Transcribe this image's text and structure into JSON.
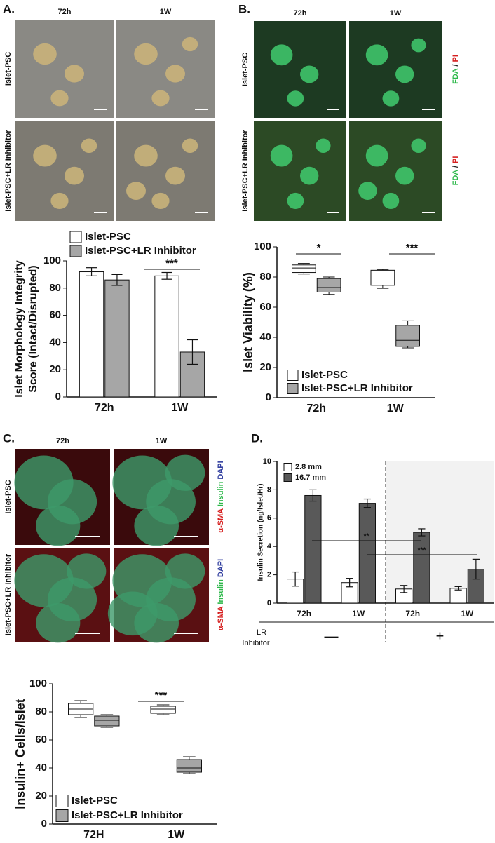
{
  "image_panels": [
    {
      "label": "A.",
      "column_labels": [
        "72h",
        "1W"
      ],
      "row_labels": [
        "Islet-PSC",
        "Islet-PSC+LR Inhibitor"
      ]
    },
    {
      "label": "B.",
      "column_labels": [
        "72h",
        "1W"
      ],
      "row_labels": [
        "Islet-PSC",
        "Islet-PSC+LR Inhibitor"
      ],
      "stain_labels": [
        [
          {
            "text": "FDA",
            "color": "#2db84a"
          },
          {
            "text": " / ",
            "color": "#222222"
          },
          {
            "text": "PI",
            "color": "#d62020"
          }
        ],
        [
          {
            "text": "FDA",
            "color": "#2db84a"
          },
          {
            "text": " / ",
            "color": "#222222"
          },
          {
            "text": "PI",
            "color": "#d62020"
          }
        ]
      ]
    },
    {
      "label": "C.",
      "column_labels": [
        "72h",
        "1W"
      ],
      "row_labels": [
        "Islet-PSC",
        "Islet-PSC+LR Inhibitor"
      ],
      "stain_labels": [
        [
          {
            "text": "α-SMA ",
            "color": "#d62020"
          },
          {
            "text": "Insulin ",
            "color": "#2db84a"
          },
          {
            "text": "DAPI",
            "color": "#3340a0"
          }
        ],
        [
          {
            "text": "α-SMA ",
            "color": "#d62020"
          },
          {
            "text": "Insulin ",
            "color": "#2db84a"
          },
          {
            "text": "DAPI",
            "color": "#3340a0"
          }
        ]
      ]
    },
    {
      "label": "D."
    }
  ],
  "chart_data": [
    {
      "type": "bar",
      "y_label": [
        "Islet Morphology Integrity",
        "Score (Intact/Disrupted)"
      ],
      "categories": [
        "72h",
        "1W"
      ],
      "series": [
        {
          "name": "Islet-PSC",
          "color": "#ffffff",
          "values": [
            92,
            89
          ],
          "errors": [
            3,
            2.5
          ]
        },
        {
          "name": "Islet-PSC+LR Inhibitor",
          "color": "#a6a6a6",
          "values": [
            86,
            33
          ],
          "errors": [
            4,
            9
          ]
        }
      ],
      "ylim": [
        0,
        100
      ],
      "yticks": [
        0,
        20,
        40,
        60,
        80,
        100
      ],
      "legend": "top-left",
      "annotations": [
        "***"
      ]
    },
    {
      "type": "box",
      "y_label": [
        "Islet Viability (%)"
      ],
      "categories": [
        "72h",
        "1W"
      ],
      "series": [
        {
          "name": "Islet-PSC",
          "color": "#ffffff",
          "min": [
            82,
            72.5
          ],
          "q1": [
            83,
            74.5
          ],
          "median": [
            86,
            84
          ],
          "q3": [
            88,
            84.5
          ],
          "max": [
            89,
            85
          ]
        },
        {
          "name": "Islet-PSC+LR Inhibitor",
          "color": "#a6a6a6",
          "min": [
            68.5,
            33
          ],
          "q1": [
            70,
            34
          ],
          "median": [
            73,
            38
          ],
          "q3": [
            79,
            48
          ],
          "max": [
            80,
            51
          ]
        }
      ],
      "ylim": [
        0,
        100
      ],
      "yticks": [
        0,
        20,
        40,
        60,
        80,
        100
      ],
      "legend": "bottom-left",
      "annotations": [
        "*",
        "***"
      ]
    },
    {
      "type": "box",
      "y_label": [
        "Insulin+ Cells/Islet"
      ],
      "categories": [
        "72H",
        "1W"
      ],
      "series": [
        {
          "name": "Islet-PSC",
          "color": "#ffffff",
          "min": [
            76,
            78
          ],
          "q1": [
            78,
            79
          ],
          "median": [
            82,
            82
          ],
          "q3": [
            86,
            84
          ],
          "max": [
            88,
            85
          ]
        },
        {
          "name": "Islet-PSC+LR Inhibitor",
          "color": "#a6a6a6",
          "min": [
            69,
            36
          ],
          "q1": [
            70,
            37
          ],
          "median": [
            74,
            40
          ],
          "q3": [
            77,
            46
          ],
          "max": [
            78,
            48
          ]
        }
      ],
      "ylim": [
        0,
        100
      ],
      "yticks": [
        0,
        20,
        40,
        60,
        80,
        100
      ],
      "legend": "bottom-left",
      "annotations": [
        "***"
      ]
    },
    {
      "type": "bar",
      "y_label": [
        "Insulin Secretion (ng/Islet/Hr)"
      ],
      "categories": [
        "72h",
        "1W",
        "72h",
        "1W"
      ],
      "series": [
        {
          "name": "2.8 mm",
          "color": "#ffffff",
          "values": [
            1.7,
            1.45,
            1.0,
            1.05
          ],
          "errors": [
            0.5,
            0.3,
            0.25,
            0.12
          ]
        },
        {
          "name": "16.7 mm",
          "color": "#595959",
          "values": [
            7.6,
            7.05,
            5.0,
            2.4
          ],
          "errors": [
            0.4,
            0.3,
            0.25,
            0.7
          ]
        }
      ],
      "ylim": [
        0,
        10
      ],
      "yticks": [
        0,
        2,
        4,
        6,
        8,
        10
      ],
      "legend": "top-left",
      "annotations": [
        "**",
        "***"
      ],
      "group_label": [
        "LR",
        "Inhibitor"
      ],
      "groups": [
        "—",
        "+"
      ]
    }
  ]
}
